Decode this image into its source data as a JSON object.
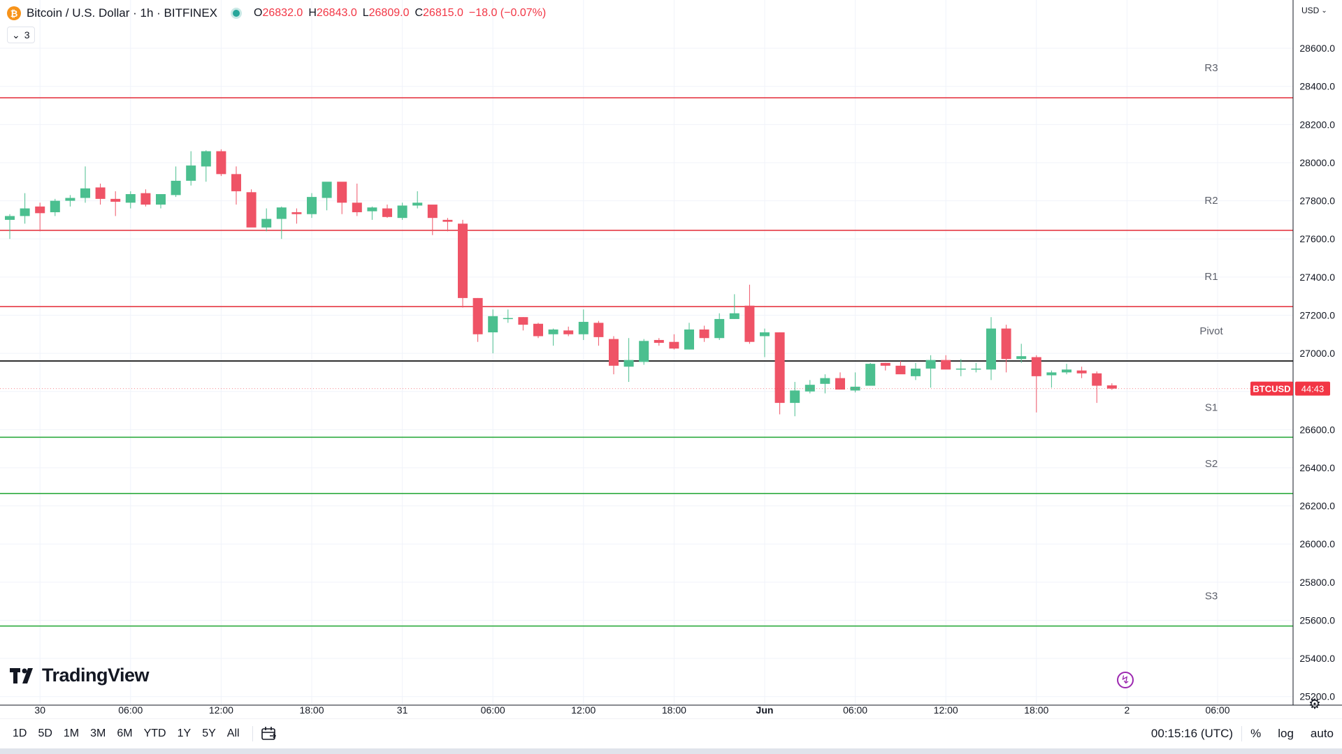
{
  "header": {
    "coin_glyph": "₿",
    "symbol_title": "Bitcoin / U.S. Dollar · 1h · BITFINEX",
    "o_label": "O",
    "o": "26832.0",
    "h_label": "H",
    "h": "26843.0",
    "l_label": "L",
    "l": "26809.0",
    "c_label": "C",
    "c": "26815.0",
    "change": "−18.0 (−0.07%)"
  },
  "indicators_toggle": {
    "count": "3"
  },
  "currency_button": "USD",
  "logo_text": "TradingView",
  "price_tag": {
    "symbol": "BTCUSD",
    "countdown": "44:43"
  },
  "bottom_bar": {
    "ranges": [
      "1D",
      "5D",
      "1M",
      "3M",
      "6M",
      "YTD",
      "1Y",
      "5Y",
      "All"
    ],
    "clock": "00:15:16 (UTC)",
    "percent": "%",
    "log": "log",
    "auto": "auto"
  },
  "colors": {
    "up": "#26a69a",
    "up_fill": "#4bbf8f",
    "down": "#f23645",
    "down_fill": "#ef5366",
    "resistance": "#e53945",
    "support": "#2eab3f",
    "pivot": "#000000",
    "grid": "#f0f3fa"
  },
  "chart_data": {
    "type": "candlestick",
    "title": "Bitcoin / U.S. Dollar · 1h · BITFINEX",
    "y_ticks": [
      25200,
      25400,
      25600,
      25800,
      26000,
      26200,
      26400,
      26600,
      26800,
      27000,
      27200,
      27400,
      27600,
      27800,
      28000,
      28200,
      28400,
      28600
    ],
    "y_tick_labels": [
      "25200.0",
      "25400.0",
      "25600.0",
      "25800.0",
      "26000.0",
      "26200.0",
      "26400.0",
      "26600.0",
      "",
      "27000.0",
      "27200.0",
      "27400.0",
      "27600.0",
      "27800.0",
      "28000.0",
      "28200.0",
      "28400.0",
      "28600.0"
    ],
    "ylim": [
      25155,
      28853
    ],
    "x_labels": [
      {
        "label": "30",
        "bar": 2
      },
      {
        "label": "06:00",
        "bar": 8
      },
      {
        "label": "12:00",
        "bar": 14
      },
      {
        "label": "18:00",
        "bar": 20
      },
      {
        "label": "31",
        "bar": 26
      },
      {
        "label": "06:00",
        "bar": 32
      },
      {
        "label": "12:00",
        "bar": 38
      },
      {
        "label": "18:00",
        "bar": 44
      },
      {
        "label": "Jun",
        "bar": 50
      },
      {
        "label": "06:00",
        "bar": 56
      },
      {
        "label": "12:00",
        "bar": 62
      },
      {
        "label": "18:00",
        "bar": 68
      },
      {
        "label": "2",
        "bar": 74
      },
      {
        "label": "06:00",
        "bar": 80
      }
    ],
    "levels": [
      {
        "name": "R3",
        "value": 28340,
        "kind": "resistance"
      },
      {
        "name": "R2",
        "value": 27645,
        "kind": "resistance"
      },
      {
        "name": "R1",
        "value": 27245,
        "kind": "resistance"
      },
      {
        "name": "Pivot",
        "value": 26960,
        "kind": "pivot"
      },
      {
        "name": "S1",
        "value": 26560,
        "kind": "support"
      },
      {
        "name": "S2",
        "value": 26265,
        "kind": "support"
      },
      {
        "name": "S3",
        "value": 25570,
        "kind": "support"
      }
    ],
    "candles": [
      [
        27700,
        27730,
        27600,
        27720
      ],
      [
        27720,
        27840,
        27680,
        27760
      ],
      [
        27770,
        27790,
        27640,
        27735
      ],
      [
        27740,
        27810,
        27720,
        27800
      ],
      [
        27800,
        27830,
        27770,
        27815
      ],
      [
        27815,
        27980,
        27790,
        27865
      ],
      [
        27870,
        27890,
        27780,
        27810
      ],
      [
        27810,
        27850,
        27720,
        27795
      ],
      [
        27790,
        27850,
        27760,
        27835
      ],
      [
        27840,
        27860,
        27770,
        27780
      ],
      [
        27780,
        27830,
        27760,
        27835
      ],
      [
        27830,
        27980,
        27820,
        27905
      ],
      [
        27905,
        28060,
        27880,
        27985
      ],
      [
        27980,
        28065,
        27900,
        28060
      ],
      [
        28060,
        28070,
        27930,
        27940
      ],
      [
        27940,
        27980,
        27780,
        27850
      ],
      [
        27845,
        27860,
        27670,
        27660
      ],
      [
        27660,
        27760,
        27640,
        27705
      ],
      [
        27705,
        27770,
        27600,
        27765
      ],
      [
        27740,
        27760,
        27680,
        27730
      ],
      [
        27730,
        27840,
        27710,
        27820
      ],
      [
        27815,
        27890,
        27750,
        27900
      ],
      [
        27900,
        27880,
        27730,
        27790
      ],
      [
        27790,
        27890,
        27720,
        27740
      ],
      [
        27745,
        27770,
        27700,
        27765
      ],
      [
        27760,
        27780,
        27710,
        27715
      ],
      [
        27710,
        27790,
        27700,
        27775
      ],
      [
        27775,
        27850,
        27760,
        27790
      ],
      [
        27780,
        27760,
        27620,
        27710
      ],
      [
        27700,
        27710,
        27640,
        27690
      ],
      [
        27680,
        27700,
        27240,
        27290
      ],
      [
        27290,
        27290,
        27060,
        27100
      ],
      [
        27110,
        27230,
        27000,
        27195
      ],
      [
        27180,
        27230,
        27160,
        27185
      ],
      [
        27190,
        27190,
        27120,
        27150
      ],
      [
        27155,
        27160,
        27080,
        27090
      ],
      [
        27100,
        27130,
        27040,
        27125
      ],
      [
        27120,
        27140,
        27090,
        27100
      ],
      [
        27100,
        27230,
        27070,
        27165
      ],
      [
        27160,
        27170,
        27040,
        27085
      ],
      [
        27075,
        27090,
        26890,
        26935
      ],
      [
        26930,
        27080,
        26850,
        26965
      ],
      [
        26955,
        27075,
        26940,
        27065
      ],
      [
        27070,
        27080,
        27040,
        27055
      ],
      [
        27060,
        27100,
        27020,
        27025
      ],
      [
        27020,
        27160,
        27020,
        27125
      ],
      [
        27125,
        27145,
        27060,
        27080
      ],
      [
        27080,
        27210,
        27070,
        27180
      ],
      [
        27180,
        27310,
        27180,
        27210
      ],
      [
        27250,
        27360,
        27050,
        27060
      ],
      [
        27090,
        27130,
        26980,
        27110
      ],
      [
        27110,
        27110,
        26680,
        26740
      ],
      [
        26740,
        26850,
        26670,
        26805
      ],
      [
        26800,
        26860,
        26790,
        26835
      ],
      [
        26840,
        26890,
        26790,
        26870
      ],
      [
        26870,
        26900,
        26810,
        26810
      ],
      [
        26805,
        26900,
        26795,
        26825
      ],
      [
        26830,
        26950,
        26830,
        26945
      ],
      [
        26950,
        26950,
        26910,
        26935
      ],
      [
        26935,
        26960,
        26900,
        26890
      ],
      [
        26880,
        26950,
        26860,
        26920
      ],
      [
        26920,
        26990,
        26820,
        26965
      ],
      [
        26965,
        26990,
        26920,
        26915
      ],
      [
        26915,
        26970,
        26880,
        26920
      ],
      [
        26915,
        26950,
        26900,
        26920
      ],
      [
        26915,
        27190,
        26860,
        27130
      ],
      [
        27130,
        27150,
        26900,
        26970
      ],
      [
        26970,
        27050,
        26950,
        26985
      ],
      [
        26980,
        26990,
        26690,
        26880
      ],
      [
        26885,
        26910,
        26820,
        26900
      ],
      [
        26900,
        26945,
        26890,
        26915
      ],
      [
        26910,
        26930,
        26870,
        26895
      ],
      [
        26895,
        26905,
        26740,
        26830
      ],
      [
        26832,
        26843,
        26809,
        26815
      ]
    ]
  }
}
